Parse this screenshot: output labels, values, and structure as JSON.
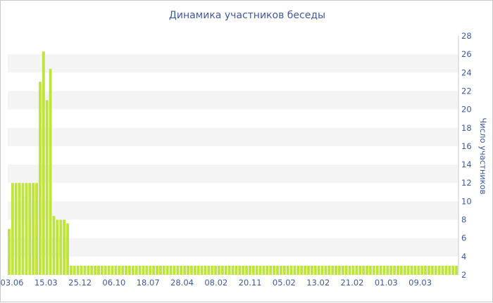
{
  "chart_data": {
    "type": "bar",
    "title": "Динамика участников беседы",
    "xlabel": "",
    "ylabel": "Число участников",
    "ylim": [
      2,
      28
    ],
    "y_ticks": [
      2,
      4,
      6,
      8,
      10,
      12,
      14,
      16,
      18,
      20,
      22,
      24,
      26,
      28
    ],
    "y_axis_position": "right",
    "grid": "alternating horizontal bands",
    "x_tick_labels": [
      "03.06",
      "15.03",
      "25.12",
      "06.10",
      "18.07",
      "28.04",
      "08.02",
      "20.11",
      "05.02",
      "13.02",
      "21.02",
      "01.03",
      "09.03"
    ],
    "bar_color": "#bfe33f",
    "band_color": "#f4f4f4",
    "text_color": "#3e5a9a",
    "values": [
      7,
      12,
      12,
      12,
      12,
      12,
      12,
      12,
      12,
      23,
      26.3,
      21,
      24.4,
      8.4,
      8,
      8,
      8,
      7.6,
      3,
      3,
      3,
      3,
      3,
      3,
      3,
      3,
      3,
      3,
      3,
      3,
      3,
      3,
      3,
      3,
      3,
      3,
      3,
      3,
      3,
      3,
      3,
      3,
      3,
      3,
      3,
      3,
      3,
      3,
      3,
      3,
      3,
      3,
      3,
      3,
      3,
      3,
      3,
      3,
      3,
      3,
      3,
      3,
      3,
      3,
      3,
      3,
      3,
      3,
      3,
      3,
      3,
      3,
      3,
      3,
      3,
      3,
      3,
      3,
      3,
      3,
      3,
      3,
      3,
      3,
      3,
      3,
      3,
      3,
      3,
      3,
      3,
      3,
      3,
      3,
      3,
      3,
      3,
      3,
      3,
      3,
      3,
      3,
      3,
      3,
      3,
      3,
      3,
      3,
      3,
      3,
      3,
      3,
      3,
      3,
      3,
      3,
      3,
      3,
      3,
      3,
      3,
      3,
      3,
      3,
      3,
      3,
      3,
      3,
      3,
      3,
      3
    ]
  }
}
